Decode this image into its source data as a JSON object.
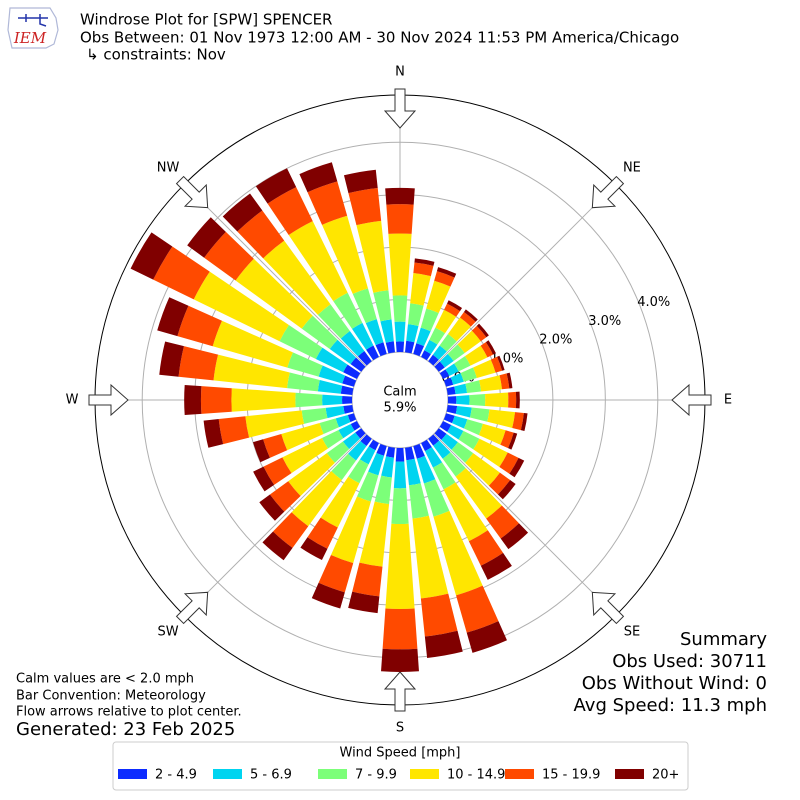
{
  "chart_data": {
    "type": "windrose",
    "logo": "IEM",
    "title": "Windrose Plot for [SPW] SPENCER",
    "subtitle": "Obs Between: 01 Nov 1973 12:00 AM - 30 Nov 2024 11:53 PM America/Chicago",
    "constraints": "↳ constraints: Nov",
    "calm_label": "Calm",
    "calm_value": "5.9%",
    "compass_labels": [
      "N",
      "NE",
      "E",
      "SE",
      "S",
      "SW",
      "W",
      "NW"
    ],
    "directions": [
      0,
      10,
      20,
      30,
      40,
      50,
      60,
      70,
      80,
      90,
      100,
      110,
      120,
      130,
      140,
      150,
      160,
      170,
      180,
      190,
      200,
      210,
      220,
      230,
      240,
      250,
      260,
      270,
      280,
      290,
      300,
      310,
      320,
      330,
      340,
      350
    ],
    "ylim": [
      0,
      4.9
    ],
    "yticks": [
      {
        "value": 0,
        "label": "0.0%"
      },
      {
        "value": 1,
        "label": "1.0%"
      },
      {
        "value": 2,
        "label": "2.0%"
      },
      {
        "value": 3,
        "label": "3.0%"
      },
      {
        "value": 4,
        "label": "4.0%"
      }
    ],
    "grid": true,
    "legend_title": "Wind Speed [mph]",
    "series": [
      {
        "name": "2 - 4.9",
        "color": "#0d2cff",
        "values": [
          0.2,
          0.22,
          0.21,
          0.14,
          0.15,
          0.14,
          0.13,
          0.14,
          0.15,
          0.16,
          0.18,
          0.17,
          0.17,
          0.18,
          0.16,
          0.17,
          0.25,
          0.24,
          0.26,
          0.19,
          0.19,
          0.15,
          0.17,
          0.14,
          0.13,
          0.12,
          0.17,
          0.19,
          0.22,
          0.23,
          0.29,
          0.25,
          0.24,
          0.24,
          0.23,
          0.21
        ]
      },
      {
        "name": "5 - 6.9",
        "color": "#00d4f0",
        "values": [
          0.38,
          0.32,
          0.31,
          0.22,
          0.22,
          0.21,
          0.2,
          0.21,
          0.22,
          0.25,
          0.28,
          0.25,
          0.26,
          0.27,
          0.31,
          0.35,
          0.49,
          0.48,
          0.51,
          0.38,
          0.39,
          0.3,
          0.34,
          0.29,
          0.26,
          0.24,
          0.34,
          0.38,
          0.44,
          0.47,
          0.58,
          0.49,
          0.47,
          0.48,
          0.46,
          0.42
        ]
      },
      {
        "name": "7 - 9.9",
        "color": "#7cff79",
        "values": [
          0.5,
          0.4,
          0.38,
          0.26,
          0.27,
          0.26,
          0.25,
          0.26,
          0.27,
          0.3,
          0.34,
          0.31,
          0.34,
          0.36,
          0.42,
          0.46,
          0.66,
          0.64,
          0.68,
          0.51,
          0.52,
          0.4,
          0.46,
          0.38,
          0.35,
          0.32,
          0.46,
          0.51,
          0.59,
          0.62,
          0.77,
          0.66,
          0.63,
          0.64,
          0.61,
          0.56
        ]
      },
      {
        "name": "10 - 14.9",
        "color": "#ffe600",
        "values": [
          1.18,
          0.58,
          0.55,
          0.38,
          0.39,
          0.38,
          0.36,
          0.37,
          0.4,
          0.44,
          0.49,
          0.45,
          0.6,
          0.63,
          0.99,
          1.1,
          1.56,
          1.53,
          1.62,
          1.2,
          1.22,
          0.94,
          1.09,
          0.91,
          0.84,
          0.76,
          1.08,
          1.22,
          1.41,
          1.48,
          1.82,
          1.56,
          1.5,
          1.52,
          1.44,
          1.33
        ]
      },
      {
        "name": "15 - 19.9",
        "color": "#ff4a00",
        "values": [
          0.56,
          0.2,
          0.19,
          0.13,
          0.13,
          0.13,
          0.12,
          0.13,
          0.14,
          0.15,
          0.17,
          0.16,
          0.23,
          0.24,
          0.47,
          0.52,
          0.74,
          0.73,
          0.77,
          0.57,
          0.58,
          0.45,
          0.51,
          0.43,
          0.4,
          0.36,
          0.51,
          0.58,
          0.67,
          0.7,
          0.86,
          0.74,
          0.71,
          0.72,
          0.68,
          0.63
        ]
      },
      {
        "name": "20+",
        "color": "#800000",
        "values": [
          0.31,
          0.08,
          0.08,
          0.07,
          0.06,
          0.06,
          0.06,
          0.05,
          0.06,
          0.07,
          0.07,
          0.07,
          0.12,
          0.13,
          0.25,
          0.3,
          0.4,
          0.41,
          0.43,
          0.32,
          0.32,
          0.24,
          0.29,
          0.25,
          0.22,
          0.2,
          0.29,
          0.32,
          0.37,
          0.4,
          0.48,
          0.4,
          0.4,
          0.4,
          0.38,
          0.35
        ]
      }
    ],
    "notes": [
      "Calm values are < 2.0 mph",
      "Bar Convention: Meteorology",
      "Flow arrows relative to plot center."
    ],
    "generated": "Generated: 23 Feb 2025",
    "summary": [
      "Summary",
      "Obs Used: 30711",
      "Obs Without Wind: 0",
      "Avg Speed: 11.3 mph"
    ]
  }
}
